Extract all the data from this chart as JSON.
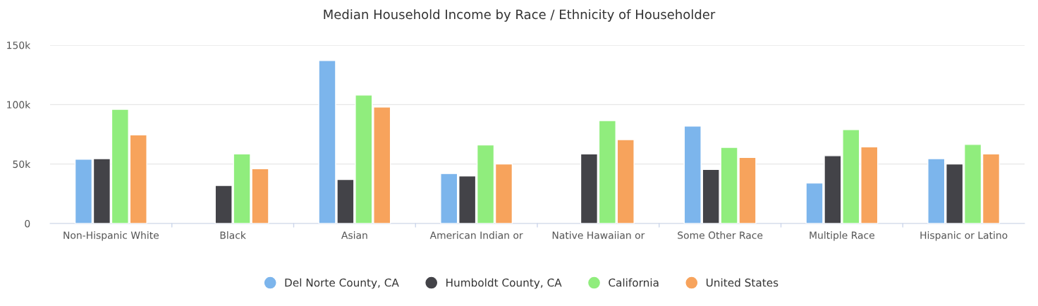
{
  "chart_data": {
    "type": "bar",
    "title": "Median Household Income by Race / Ethnicity of Householder",
    "categories": [
      "Non-Hispanic White",
      "Black",
      "Asian",
      "American Indian or",
      "Native Hawaiian or",
      "Some Other Race",
      "Multiple Race",
      "Hispanic or Latino"
    ],
    "series": [
      {
        "name": "Del Norte County, CA",
        "color": "#7cb5ec",
        "values": [
          54,
          null,
          137,
          42,
          null,
          82,
          34,
          54.5
        ]
      },
      {
        "name": "Humboldt County, CA",
        "color": "#434348",
        "values": [
          54.5,
          32,
          37,
          40,
          58.5,
          45.5,
          57,
          50
        ]
      },
      {
        "name": "California",
        "color": "#90ed7d",
        "values": [
          96,
          58.5,
          108,
          66,
          86.5,
          64,
          79,
          66.5
        ]
      },
      {
        "name": "United States",
        "color": "#f7a35c",
        "values": [
          74.5,
          46,
          98,
          50,
          70.5,
          55.5,
          64.5,
          58.5
        ]
      }
    ],
    "ylim": [
      0,
      150
    ],
    "yticks": [
      {
        "value": 0,
        "label": "0"
      },
      {
        "value": 50,
        "label": "50k"
      },
      {
        "value": 100,
        "label": "100k"
      },
      {
        "value": 150,
        "label": "150k"
      }
    ],
    "grid": "y",
    "legend": "bottom",
    "marker": "circle"
  }
}
